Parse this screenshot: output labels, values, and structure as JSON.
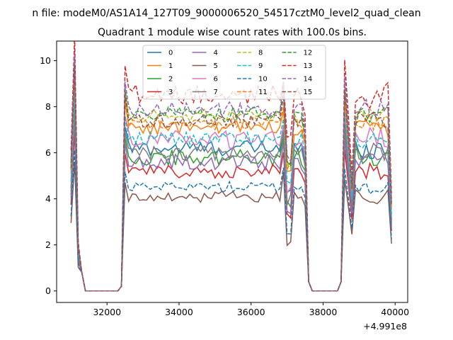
{
  "chart_data": {
    "type": "line",
    "suptitle": "n file: modeM0/AS1A14_127T09_9000006520_54517cztM0_level2_quad_clean",
    "title": "Quadrant 1 module wise count rates with 100.0s bins.",
    "xlabel": "",
    "ylabel": "",
    "x_offset_label": "+4.991e8",
    "xlim": [
      30600,
      40350
    ],
    "ylim": [
      -0.5,
      10.85
    ],
    "xticks": [
      32000,
      34000,
      36000,
      38000,
      40000
    ],
    "xtick_labels": [
      "32000",
      "34000",
      "36000",
      "38000",
      "40000"
    ],
    "yticks": [
      0,
      2,
      4,
      6,
      8,
      10
    ],
    "ytick_labels": [
      "0",
      "2",
      "4",
      "6",
      "8",
      "10"
    ],
    "grid": false,
    "legend_position": "top-center",
    "legend_columns": 4,
    "series": [
      {
        "name": "0",
        "color": "#1f77b4",
        "dash": "solid",
        "level": 6.2,
        "amp": 0.35
      },
      {
        "name": "1",
        "color": "#ff7f0e",
        "dash": "solid",
        "level": 7.1,
        "amp": 0.35
      },
      {
        "name": "2",
        "color": "#2ca02c",
        "dash": "solid",
        "level": 5.8,
        "amp": 0.35
      },
      {
        "name": "3",
        "color": "#d62728",
        "dash": "solid",
        "level": 5.2,
        "amp": 0.3
      },
      {
        "name": "4",
        "color": "#9467bd",
        "dash": "solid",
        "level": 5.6,
        "amp": 0.35
      },
      {
        "name": "5",
        "color": "#8c564b",
        "dash": "solid",
        "level": 4.1,
        "amp": 0.25
      },
      {
        "name": "6",
        "color": "#e377c2",
        "dash": "solid",
        "level": 6.6,
        "amp": 0.4
      },
      {
        "name": "7",
        "color": "#7f7f7f",
        "dash": "solid",
        "level": 6.0,
        "amp": 0.35
      },
      {
        "name": "8",
        "color": "#bcbd22",
        "dash": "dashed",
        "level": 7.6,
        "amp": 0.3
      },
      {
        "name": "9",
        "color": "#17becf",
        "dash": "dashed",
        "level": 6.6,
        "amp": 0.3
      },
      {
        "name": "10",
        "color": "#1f77b4",
        "dash": "dashed",
        "level": 4.5,
        "amp": 0.25
      },
      {
        "name": "11",
        "color": "#ff7f0e",
        "dash": "dashed",
        "level": 7.3,
        "amp": 0.3
      },
      {
        "name": "12",
        "color": "#2ca02c",
        "dash": "dashed",
        "level": 7.7,
        "amp": 0.3
      },
      {
        "name": "13",
        "color": "#d62728",
        "dash": "dashed",
        "level": 8.5,
        "amp": 0.45
      },
      {
        "name": "14",
        "color": "#9467bd",
        "dash": "dashed",
        "level": 7.9,
        "amp": 0.35
      },
      {
        "name": "15",
        "color": "#8c564b",
        "dash": "dashed",
        "level": 7.4,
        "amp": 0.3
      }
    ]
  }
}
